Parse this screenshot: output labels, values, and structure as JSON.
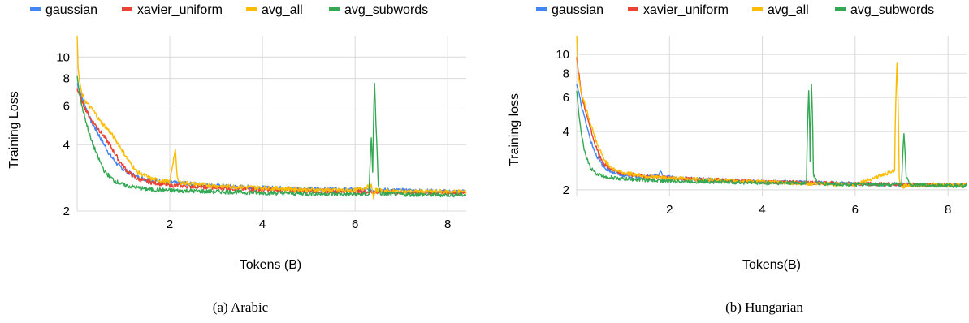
{
  "chart_data": [
    {
      "type": "line",
      "caption": "(a) Arabic",
      "xlabel": "Tokens (B)",
      "ylabel": "Training Loss",
      "yscale": "log",
      "xlim": [
        0,
        8.4
      ],
      "ylim": [
        2,
        12.5
      ],
      "xticks": [
        2,
        4,
        6,
        8
      ],
      "yticks": [
        2,
        4,
        6,
        8,
        10
      ],
      "grid": true,
      "legend_position": "top",
      "series": [
        {
          "name": "gaussian",
          "color": "#4285F4",
          "x": [
            0.0,
            0.1,
            0.2,
            0.3,
            0.5,
            0.7,
            0.9,
            1.1,
            1.3,
            1.6,
            2.0,
            3.0,
            4.0,
            5.0,
            6.0,
            7.0,
            8.0,
            8.4
          ],
          "y": [
            7.6,
            6.6,
            5.8,
            5.1,
            4.3,
            3.6,
            3.2,
            3.0,
            2.85,
            2.75,
            2.7,
            2.6,
            2.55,
            2.52,
            2.5,
            2.48,
            2.45,
            2.45
          ]
        },
        {
          "name": "xavier_uniform",
          "color": "#EA4335",
          "x": [
            0.0,
            0.1,
            0.2,
            0.3,
            0.5,
            0.7,
            0.9,
            1.1,
            1.3,
            1.6,
            2.0,
            3.0,
            4.0,
            5.0,
            6.0,
            7.0,
            8.0,
            8.4
          ],
          "y": [
            7.2,
            6.3,
            5.7,
            5.2,
            4.6,
            4.0,
            3.4,
            3.0,
            2.8,
            2.7,
            2.62,
            2.55,
            2.5,
            2.47,
            2.45,
            2.43,
            2.42,
            2.42
          ]
        },
        {
          "name": "avg_all",
          "color": "#FBBC04",
          "x": [
            0.0,
            0.02,
            0.05,
            0.1,
            0.2,
            0.35,
            0.5,
            0.7,
            0.9,
            1.1,
            1.3,
            1.6,
            2.0,
            2.12,
            2.16,
            2.2,
            3.0,
            4.0,
            5.0,
            6.0,
            6.35,
            6.4,
            6.45,
            7.0,
            8.0,
            8.4
          ],
          "y": [
            12.5,
            9.0,
            7.8,
            6.8,
            6.2,
            5.7,
            5.1,
            4.6,
            4.0,
            3.4,
            3.0,
            2.8,
            2.7,
            3.8,
            2.8,
            2.7,
            2.6,
            2.55,
            2.5,
            2.48,
            2.6,
            2.3,
            2.48,
            2.45,
            2.45,
            2.45
          ]
        },
        {
          "name": "avg_subwords",
          "color": "#34A853",
          "x": [
            0.0,
            0.05,
            0.1,
            0.2,
            0.3,
            0.45,
            0.6,
            0.8,
            1.0,
            1.3,
            1.6,
            2.0,
            3.0,
            4.0,
            5.0,
            6.0,
            6.3,
            6.35,
            6.38,
            6.42,
            6.45,
            6.5,
            6.55,
            7.0,
            8.0,
            8.4
          ],
          "y": [
            8.2,
            6.8,
            6.0,
            5.0,
            4.2,
            3.5,
            3.0,
            2.75,
            2.62,
            2.55,
            2.5,
            2.48,
            2.45,
            2.42,
            2.4,
            2.38,
            2.38,
            4.3,
            3.0,
            7.6,
            5.0,
            2.6,
            2.4,
            2.38,
            2.37,
            2.37
          ]
        }
      ]
    },
    {
      "type": "line",
      "caption": "(b) Hungarian",
      "xlabel": "Tokens(B)",
      "ylabel": "Training loss",
      "yscale": "log",
      "xlim": [
        0,
        8.4
      ],
      "ylim": [
        1.85,
        12.5
      ],
      "xticks": [
        2,
        4,
        6,
        8
      ],
      "yticks": [
        2,
        4,
        6,
        8,
        10
      ],
      "grid": true,
      "legend_position": "top",
      "series": [
        {
          "name": "gaussian",
          "color": "#4285F4",
          "x": [
            0.0,
            0.1,
            0.2,
            0.3,
            0.4,
            0.5,
            0.6,
            0.8,
            1.0,
            1.4,
            1.75,
            1.8,
            1.85,
            2.2,
            3.0,
            4.0,
            5.0,
            6.0,
            7.0,
            8.0,
            8.4
          ],
          "y": [
            7.0,
            5.5,
            4.4,
            3.6,
            3.1,
            2.8,
            2.6,
            2.45,
            2.38,
            2.33,
            2.35,
            2.5,
            2.35,
            2.3,
            2.25,
            2.2,
            2.18,
            2.15,
            2.13,
            2.12,
            2.12
          ]
        },
        {
          "name": "xavier_uniform",
          "color": "#EA4335",
          "x": [
            0.0,
            0.1,
            0.2,
            0.3,
            0.4,
            0.5,
            0.6,
            0.8,
            1.0,
            1.5,
            2.0,
            3.0,
            4.0,
            5.0,
            6.0,
            7.0,
            8.0,
            8.4
          ],
          "y": [
            9.5,
            6.2,
            5.0,
            4.1,
            3.4,
            2.95,
            2.7,
            2.5,
            2.42,
            2.35,
            2.3,
            2.25,
            2.2,
            2.18,
            2.15,
            2.13,
            2.12,
            2.12
          ]
        },
        {
          "name": "avg_all",
          "color": "#FBBC04",
          "x": [
            0.0,
            0.03,
            0.08,
            0.15,
            0.25,
            0.35,
            0.45,
            0.55,
            0.65,
            0.8,
            1.0,
            1.5,
            2.0,
            3.0,
            4.0,
            5.0,
            6.0,
            6.85,
            6.9,
            6.95,
            7.0,
            7.1,
            8.0,
            8.4
          ],
          "y": [
            12.5,
            8.0,
            6.6,
            5.8,
            4.8,
            4.0,
            3.4,
            3.0,
            2.75,
            2.55,
            2.45,
            2.35,
            2.3,
            2.25,
            2.2,
            2.15,
            2.13,
            2.5,
            9.0,
            2.3,
            2.05,
            2.12,
            2.12,
            2.12
          ]
        },
        {
          "name": "avg_subwords",
          "color": "#34A853",
          "x": [
            0.0,
            0.05,
            0.1,
            0.15,
            0.2,
            0.3,
            0.4,
            0.5,
            0.7,
            1.0,
            1.5,
            2.0,
            3.0,
            4.0,
            4.95,
            5.0,
            5.03,
            5.06,
            5.1,
            5.2,
            6.0,
            7.0,
            7.05,
            7.1,
            7.2,
            8.0,
            8.4
          ],
          "y": [
            6.5,
            4.8,
            3.9,
            3.3,
            2.95,
            2.6,
            2.45,
            2.38,
            2.32,
            2.28,
            2.25,
            2.22,
            2.2,
            2.17,
            2.17,
            6.5,
            2.8,
            7.0,
            2.4,
            2.15,
            2.13,
            2.13,
            3.9,
            2.3,
            2.12,
            2.1,
            2.1
          ]
        }
      ]
    }
  ]
}
